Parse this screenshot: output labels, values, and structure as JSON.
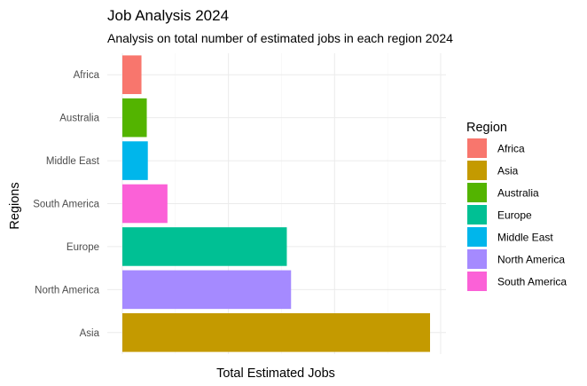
{
  "chart_data": {
    "type": "bar",
    "orientation": "horizontal",
    "title": "Job Analysis 2024",
    "subtitle": "Analysis on total number of estimated jobs in each region 2024",
    "xlabel": "Total Estimated Jobs",
    "ylabel": "Regions",
    "categories": [
      "Asia",
      "North America",
      "Europe",
      "South America",
      "Middle East",
      "Australia",
      "Africa"
    ],
    "values": [
      580,
      318,
      310,
      85,
      48,
      46,
      36
    ],
    "xlim": [
      0,
      610
    ],
    "x_tick_labels_shown": false,
    "grid": true,
    "legend": {
      "title": "Region",
      "placement": "right",
      "entries": [
        {
          "label": "Africa",
          "color": "#F8766D"
        },
        {
          "label": "Asia",
          "color": "#C49A00"
        },
        {
          "label": "Australia",
          "color": "#53B400"
        },
        {
          "label": "Europe",
          "color": "#00C094"
        },
        {
          "label": "Middle East",
          "color": "#00B6EB"
        },
        {
          "label": "North America",
          "color": "#A58AFF"
        },
        {
          "label": "South America",
          "color": "#FB61D7"
        }
      ]
    },
    "colors": {
      "Africa": "#F8766D",
      "Asia": "#C49A00",
      "Australia": "#53B400",
      "Europe": "#00C094",
      "Middle East": "#00B6EB",
      "North America": "#A58AFF",
      "South America": "#FB61D7"
    }
  }
}
